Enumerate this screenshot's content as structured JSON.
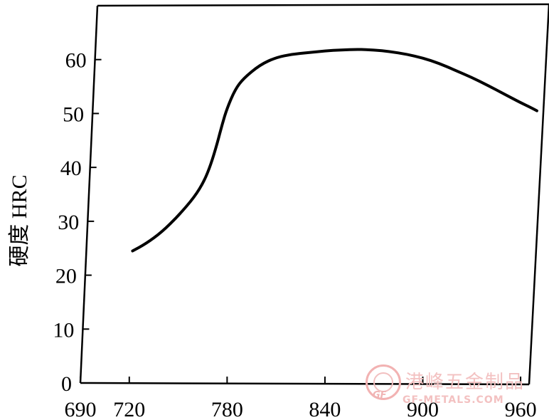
{
  "chart_data": {
    "type": "line",
    "title": "",
    "xlabel": "",
    "ylabel": "硬度 HRC",
    "xlim": [
      690,
      970
    ],
    "ylim": [
      0,
      70
    ],
    "x_ticks": [
      690,
      720,
      780,
      840,
      900,
      960
    ],
    "y_ticks": [
      0,
      10,
      20,
      30,
      40,
      50,
      60
    ],
    "grid": false,
    "series": [
      {
        "name": "",
        "color": "#000000",
        "x": [
          722,
          730,
          740,
          750,
          760,
          766,
          770,
          774,
          777,
          780,
          785,
          790,
          800,
          810,
          820,
          830,
          840,
          850,
          860,
          870,
          880,
          890,
          900,
          910,
          920,
          930,
          940,
          950,
          960,
          965,
          970
        ],
        "y": [
          24.5,
          25.8,
          28,
          31,
          34.5,
          37.5,
          40.5,
          44.5,
          48,
          51,
          54.5,
          56.5,
          59,
          60.4,
          61,
          61.3,
          61.6,
          61.8,
          61.9,
          61.8,
          61.5,
          61,
          60.3,
          59.3,
          58,
          56.7,
          55.2,
          53.6,
          52,
          51.3,
          50.5
        ]
      }
    ]
  },
  "watermark": {
    "logo_text": "GF",
    "cn": "港峰五金制品",
    "en": "GF-METALS.COM"
  }
}
